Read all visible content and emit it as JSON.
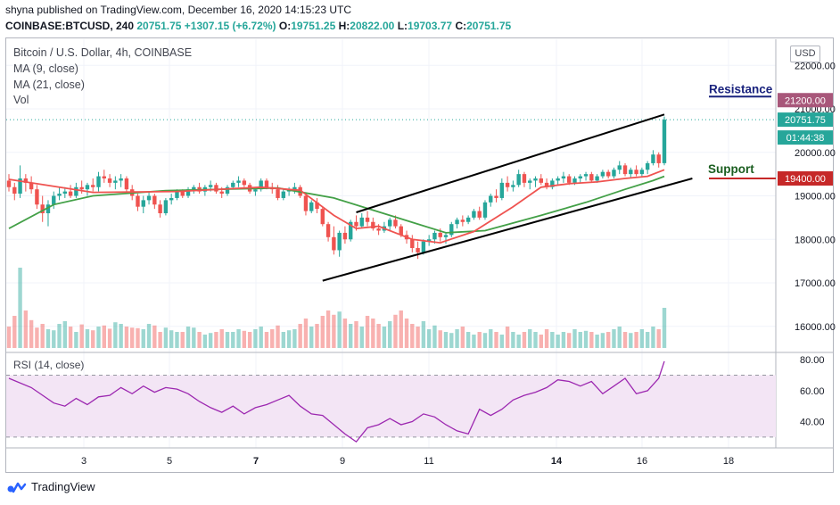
{
  "header": {
    "published_line": "shyna published on TradingView.com, December 16, 2020 14:15:23 UTC",
    "symbol": "COINBASE:BTCUSD, 240",
    "last": "20751.75",
    "change": "+1307.15 (+6.72%)",
    "o_label": "O:",
    "o_value": "19751.25",
    "h_label": "H:",
    "h_value": "20822.00",
    "l_label": "L:",
    "l_value": "19703.77",
    "c_label": "C:",
    "c_value": "20751.75"
  },
  "legend": {
    "title": "Bitcoin / U.S. Dollar, 4h, COINBASE",
    "ma9": "MA (9, close)",
    "ma21": "MA (21, close)",
    "vol": "Vol",
    "rsi": "RSI (14, close)"
  },
  "currency_button": "USD",
  "footer": {
    "brand": "TradingView"
  },
  "colors": {
    "up": "#26a69a",
    "down": "#ef5350",
    "ma9": "#ef5350",
    "ma21": "#43a047",
    "rsi": "#9c27b0",
    "rsi_band": "#f3e5f5",
    "resistance": "#1a237e",
    "support": "#1b5e20",
    "resistance_tag": "#a8577a",
    "support_tag": "#c62828"
  },
  "chart_data": [
    {
      "type": "candlestick",
      "x_ticks": [
        "3",
        "5",
        "7",
        "9",
        "11",
        "14",
        "16",
        "18"
      ],
      "y_ticks": [
        "16000.00",
        "17000.00",
        "18000.00",
        "19000.00",
        "20000.00",
        "21000.00",
        "22000.00"
      ],
      "ylim": [
        15400,
        22600
      ],
      "candles": [
        [
          19350,
          19500,
          19100,
          19200
        ],
        [
          19200,
          19300,
          18900,
          19050
        ],
        [
          19050,
          19700,
          18950,
          19400
        ],
        [
          19400,
          19500,
          19100,
          19300
        ],
        [
          19300,
          19450,
          19050,
          19150
        ],
        [
          19150,
          19250,
          18700,
          18800
        ],
        [
          18800,
          19000,
          18400,
          18600
        ],
        [
          18600,
          18900,
          18300,
          18800
        ],
        [
          18800,
          19100,
          18700,
          19000
        ],
        [
          19000,
          19200,
          18900,
          19050
        ],
        [
          19050,
          19200,
          18950,
          19100
        ],
        [
          19100,
          19250,
          18950,
          19000
        ],
        [
          19000,
          19300,
          18950,
          19200
        ],
        [
          19200,
          19350,
          19050,
          19150
        ],
        [
          19150,
          19300,
          19000,
          19250
        ],
        [
          19250,
          19400,
          19100,
          19200
        ],
        [
          19200,
          19550,
          19100,
          19450
        ],
        [
          19450,
          19600,
          19300,
          19400
        ],
        [
          19400,
          19500,
          19200,
          19300
        ],
        [
          19300,
          19450,
          19150,
          19350
        ],
        [
          19350,
          19500,
          19200,
          19400
        ],
        [
          19400,
          19450,
          19100,
          19150
        ],
        [
          19150,
          19250,
          18900,
          19000
        ],
        [
          19000,
          19050,
          18650,
          18750
        ],
        [
          18750,
          19000,
          18600,
          18900
        ],
        [
          18900,
          19100,
          18800,
          19000
        ],
        [
          19000,
          19050,
          18700,
          18800
        ],
        [
          18800,
          18900,
          18500,
          18600
        ],
        [
          18600,
          18950,
          18550,
          18900
        ],
        [
          18900,
          19050,
          18800,
          18950
        ],
        [
          18950,
          19150,
          18900,
          19100
        ],
        [
          19100,
          19150,
          18950,
          19000
        ],
        [
          19000,
          19200,
          18950,
          19150
        ],
        [
          19150,
          19250,
          19050,
          19200
        ],
        [
          19200,
          19300,
          19050,
          19100
        ],
        [
          19100,
          19250,
          19000,
          19200
        ],
        [
          19200,
          19350,
          19100,
          19250
        ],
        [
          19250,
          19300,
          19050,
          19100
        ],
        [
          19100,
          19200,
          18950,
          19050
        ],
        [
          19050,
          19250,
          19000,
          19200
        ],
        [
          19200,
          19350,
          19150,
          19300
        ],
        [
          19300,
          19450,
          19200,
          19350
        ],
        [
          19350,
          19400,
          19200,
          19250
        ],
        [
          19250,
          19300,
          19050,
          19100
        ],
        [
          19100,
          19200,
          19000,
          19150
        ],
        [
          19150,
          19400,
          19100,
          19350
        ],
        [
          19350,
          19400,
          19150,
          19200
        ],
        [
          19200,
          19300,
          19050,
          19150
        ],
        [
          19150,
          19250,
          18900,
          18950
        ],
        [
          18950,
          19150,
          18900,
          19100
        ],
        [
          19100,
          19200,
          19000,
          19150
        ],
        [
          19150,
          19300,
          19050,
          19200
        ],
        [
          19200,
          19250,
          18950,
          19000
        ],
        [
          19000,
          19050,
          18550,
          18650
        ],
        [
          18650,
          18900,
          18600,
          18850
        ],
        [
          18850,
          18950,
          18600,
          18700
        ],
        [
          18700,
          18750,
          18300,
          18350
        ],
        [
          18350,
          18400,
          17950,
          18050
        ],
        [
          18050,
          18300,
          17650,
          17750
        ],
        [
          17750,
          18200,
          17600,
          18150
        ],
        [
          18150,
          18300,
          17900,
          18000
        ],
        [
          18000,
          18450,
          17950,
          18400
        ],
        [
          18400,
          18550,
          18200,
          18300
        ],
        [
          18300,
          18600,
          18250,
          18500
        ],
        [
          18500,
          18650,
          18300,
          18400
        ],
        [
          18400,
          18500,
          18200,
          18250
        ],
        [
          18250,
          18350,
          18100,
          18200
        ],
        [
          18200,
          18400,
          18150,
          18300
        ],
        [
          18300,
          18500,
          18200,
          18450
        ],
        [
          18450,
          18550,
          18250,
          18300
        ],
        [
          18300,
          18350,
          18050,
          18100
        ],
        [
          18100,
          18200,
          17900,
          18000
        ],
        [
          18000,
          18100,
          17700,
          17800
        ],
        [
          17800,
          17950,
          17550,
          17700
        ],
        [
          17700,
          18000,
          17650,
          17950
        ],
        [
          17950,
          18100,
          17850,
          18000
        ],
        [
          18000,
          18200,
          17900,
          18150
        ],
        [
          18150,
          18250,
          17950,
          18050
        ],
        [
          18050,
          18150,
          17900,
          18100
        ],
        [
          18100,
          18400,
          18050,
          18350
        ],
        [
          18350,
          18500,
          18250,
          18450
        ],
        [
          18450,
          18550,
          18300,
          18400
        ],
        [
          18400,
          18550,
          18350,
          18500
        ],
        [
          18500,
          18700,
          18450,
          18650
        ],
        [
          18650,
          18750,
          18450,
          18500
        ],
        [
          18500,
          18900,
          18450,
          18850
        ],
        [
          18850,
          19050,
          18750,
          19000
        ],
        [
          19000,
          19150,
          18850,
          18950
        ],
        [
          18950,
          19400,
          18900,
          19300
        ],
        [
          19300,
          19450,
          19100,
          19200
        ],
        [
          19200,
          19350,
          19100,
          19250
        ],
        [
          19250,
          19600,
          19200,
          19500
        ],
        [
          19500,
          19550,
          19200,
          19300
        ],
        [
          19300,
          19400,
          19150,
          19350
        ],
        [
          19350,
          19450,
          19200,
          19400
        ],
        [
          19400,
          19500,
          19250,
          19300
        ],
        [
          19300,
          19400,
          19150,
          19200
        ],
        [
          19200,
          19400,
          19150,
          19350
        ],
        [
          19350,
          19450,
          19250,
          19400
        ],
        [
          19400,
          19550,
          19300,
          19450
        ],
        [
          19450,
          19500,
          19250,
          19300
        ],
        [
          19300,
          19450,
          19250,
          19400
        ],
        [
          19400,
          19500,
          19300,
          19450
        ],
        [
          19450,
          19550,
          19350,
          19500
        ],
        [
          19500,
          19550,
          19300,
          19350
        ],
        [
          19350,
          19500,
          19300,
          19450
        ],
        [
          19450,
          19600,
          19400,
          19550
        ],
        [
          19550,
          19600,
          19400,
          19450
        ],
        [
          19450,
          19650,
          19400,
          19600
        ],
        [
          19600,
          19800,
          19500,
          19700
        ],
        [
          19700,
          19750,
          19450,
          19500
        ],
        [
          19500,
          19650,
          19400,
          19600
        ],
        [
          19600,
          19700,
          19450,
          19500
        ],
        [
          19500,
          19650,
          19450,
          19600
        ],
        [
          19600,
          19800,
          19500,
          19750
        ],
        [
          19750,
          20050,
          19700,
          19950
        ],
        [
          19950,
          20000,
          19650,
          19750
        ],
        [
          19751.25,
          20822,
          19703.77,
          20751.75
        ]
      ],
      "volume": [
        40,
        60,
        150,
        70,
        52,
        38,
        45,
        35,
        33,
        45,
        50,
        40,
        30,
        44,
        35,
        33,
        40,
        42,
        36,
        48,
        45,
        40,
        38,
        37,
        35,
        45,
        42,
        30,
        38,
        33,
        30,
        30,
        40,
        38,
        30,
        25,
        28,
        30,
        35,
        30,
        30,
        35,
        32,
        30,
        35,
        40,
        30,
        35,
        42,
        30,
        33,
        35,
        45,
        55,
        40,
        45,
        60,
        70,
        62,
        68,
        55,
        45,
        50,
        40,
        60,
        55,
        45,
        40,
        50,
        62,
        70,
        55,
        45,
        40,
        50,
        35,
        42,
        33,
        30,
        28,
        35,
        40,
        30,
        25,
        30,
        28,
        35,
        30,
        25,
        40,
        30,
        25,
        30,
        35,
        30,
        25,
        35,
        30,
        25,
        30,
        28,
        35,
        30,
        32,
        30,
        25,
        28,
        30,
        35,
        40,
        30,
        28,
        30,
        35,
        30,
        40,
        35,
        75
      ],
      "ma9": [
        [
          0,
          19380
        ],
        [
          15,
          19080
        ],
        [
          30,
          19100
        ],
        [
          45,
          19200
        ],
        [
          52,
          19130
        ],
        [
          58,
          18550
        ],
        [
          62,
          18250
        ],
        [
          66,
          18300
        ],
        [
          72,
          18000
        ],
        [
          77,
          17920
        ],
        [
          83,
          18180
        ],
        [
          90,
          18750
        ],
        [
          95,
          19200
        ],
        [
          100,
          19280
        ],
        [
          105,
          19320
        ],
        [
          110,
          19400
        ],
        [
          114,
          19450
        ],
        [
          117,
          19600
        ]
      ],
      "ma21": [
        [
          0,
          18250
        ],
        [
          8,
          18800
        ],
        [
          15,
          19000
        ],
        [
          28,
          19120
        ],
        [
          48,
          19180
        ],
        [
          58,
          18950
        ],
        [
          68,
          18550
        ],
        [
          78,
          18150
        ],
        [
          85,
          18200
        ],
        [
          95,
          18550
        ],
        [
          103,
          18850
        ],
        [
          110,
          19150
        ],
        [
          115,
          19350
        ],
        [
          117,
          19450
        ]
      ],
      "channel_upper": [
        [
          62,
          18620
        ],
        [
          117,
          20870
        ]
      ],
      "channel_lower": [
        [
          56,
          17050
        ],
        [
          122,
          19400
        ]
      ],
      "annotations": [
        {
          "text": "Resistance",
          "price": 21200,
          "tag": "21200.00"
        },
        {
          "text": "Support",
          "price": 19400,
          "tag": "19400.00"
        }
      ],
      "last_price_tag": "20751.75",
      "countdown_tag": "01:44:38"
    },
    {
      "type": "line",
      "name": "RSI (14, close)",
      "y_ticks": [
        "40.00",
        "60.00",
        "80.00"
      ],
      "ylim": [
        23,
        83
      ],
      "band": [
        30,
        70
      ],
      "values": [
        [
          0,
          68
        ],
        [
          4,
          62
        ],
        [
          8,
          52
        ],
        [
          10,
          50
        ],
        [
          12,
          55
        ],
        [
          14,
          51
        ],
        [
          16,
          56
        ],
        [
          18,
          57
        ],
        [
          20,
          62
        ],
        [
          22,
          58
        ],
        [
          24,
          63
        ],
        [
          26,
          59
        ],
        [
          28,
          62
        ],
        [
          30,
          61
        ],
        [
          32,
          58
        ],
        [
          34,
          53
        ],
        [
          36,
          49
        ],
        [
          38,
          46
        ],
        [
          40,
          50
        ],
        [
          42,
          45
        ],
        [
          44,
          49
        ],
        [
          46,
          51
        ],
        [
          48,
          54
        ],
        [
          50,
          57
        ],
        [
          52,
          50
        ],
        [
          54,
          45
        ],
        [
          56,
          44
        ],
        [
          58,
          38
        ],
        [
          60,
          32
        ],
        [
          62,
          27
        ],
        [
          64,
          36
        ],
        [
          66,
          38
        ],
        [
          68,
          42
        ],
        [
          70,
          38
        ],
        [
          72,
          40
        ],
        [
          74,
          45
        ],
        [
          76,
          43
        ],
        [
          78,
          38
        ],
        [
          80,
          34
        ],
        [
          82,
          32
        ],
        [
          84,
          48
        ],
        [
          86,
          44
        ],
        [
          88,
          48
        ],
        [
          90,
          54
        ],
        [
          92,
          57
        ],
        [
          94,
          59
        ],
        [
          96,
          62
        ],
        [
          98,
          67
        ],
        [
          100,
          66
        ],
        [
          102,
          63
        ],
        [
          104,
          66
        ],
        [
          106,
          58
        ],
        [
          108,
          63
        ],
        [
          110,
          68
        ],
        [
          112,
          58
        ],
        [
          114,
          60
        ],
        [
          116,
          68
        ],
        [
          117,
          79
        ]
      ]
    }
  ]
}
